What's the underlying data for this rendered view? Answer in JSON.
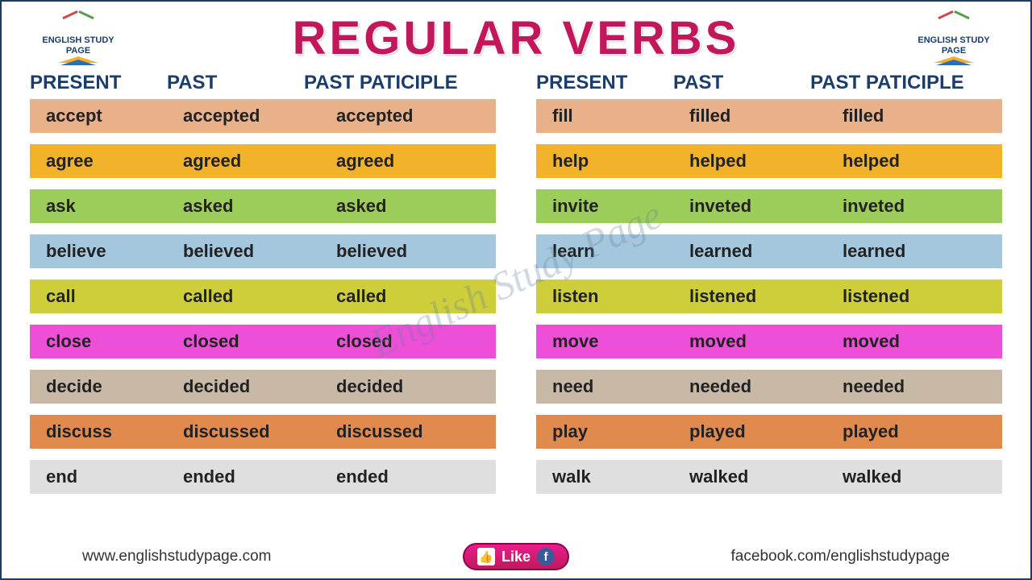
{
  "title": "REGULAR VERBS",
  "logo": {
    "line1": "ENGLISH STUDY",
    "line2": "PAGE"
  },
  "headers": {
    "present": "PRESENT",
    "past": "PAST",
    "pp": "PAST PATICIPLE"
  },
  "watermark": "English Study Page",
  "footer": {
    "left": "www.englishstudypage.com",
    "like": "Like",
    "right": "facebook.com/englishstudypage"
  },
  "row_colors": [
    "#e8b18a",
    "#f2b32a",
    "#9ccd5a",
    "#a4c7dd",
    "#cdce3a",
    "#ee4fd9",
    "#c7b9a5",
    "#e08b4d",
    "#dfdfe0"
  ],
  "left_rows": [
    {
      "present": "accept",
      "past": "accepted",
      "pp": "accepted"
    },
    {
      "present": "agree",
      "past": "agreed",
      "pp": "agreed"
    },
    {
      "present": "ask",
      "past": "asked",
      "pp": "asked"
    },
    {
      "present": "believe",
      "past": "believed",
      "pp": "believed"
    },
    {
      "present": "call",
      "past": "called",
      "pp": "called"
    },
    {
      "present": "close",
      "past": "closed",
      "pp": "closed"
    },
    {
      "present": "decide",
      "past": "decided",
      "pp": "decided"
    },
    {
      "present": "discuss",
      "past": "discussed",
      "pp": "discussed"
    },
    {
      "present": "end",
      "past": "ended",
      "pp": "ended"
    }
  ],
  "right_rows": [
    {
      "present": "fill",
      "past": "filled",
      "pp": "filled"
    },
    {
      "present": "help",
      "past": "helped",
      "pp": "helped"
    },
    {
      "present": "invite",
      "past": "inveted",
      "pp": "inveted"
    },
    {
      "present": "learn",
      "past": "learned",
      "pp": "learned"
    },
    {
      "present": "listen",
      "past": "listened",
      "pp": "listened"
    },
    {
      "present": "move",
      "past": "moved",
      "pp": "moved"
    },
    {
      "present": "need",
      "past": "needed",
      "pp": "needed"
    },
    {
      "present": "play",
      "past": "played",
      "pp": "played"
    },
    {
      "present": "walk",
      "past": "walked",
      "pp": "walked"
    }
  ]
}
